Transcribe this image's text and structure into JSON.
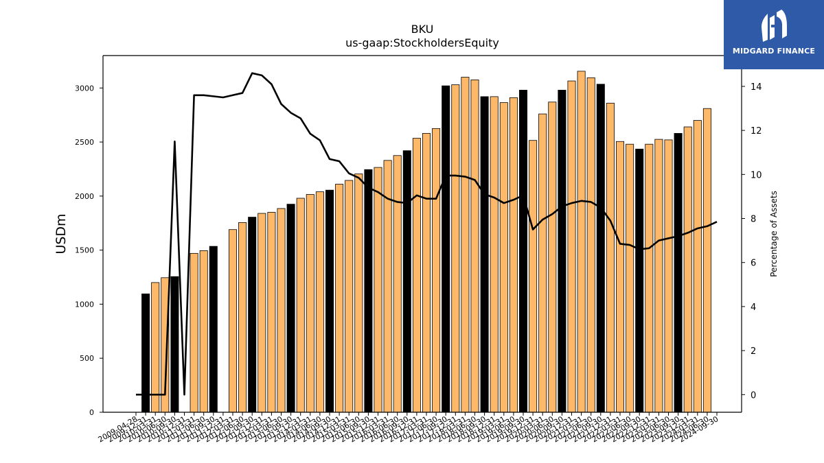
{
  "header": {
    "title": "BKU",
    "subtitle": "us-gaap:StockholdersEquity"
  },
  "logo": {
    "text": "MIDGARD FINANCE",
    "background": "#2f5aa8"
  },
  "chart_data": {
    "type": "bar",
    "title": "BKU",
    "subtitle": "us-gaap:StockholdersEquity",
    "xlabel": "",
    "ylabel": "USDm",
    "y2label": "Percentage of Assets",
    "ylim": [
      0,
      3300
    ],
    "y2lim": [
      -0.8,
      15.4
    ],
    "yticks": [
      0,
      500,
      1000,
      1500,
      2000,
      2500,
      3000
    ],
    "y2ticks": [
      0,
      2,
      4,
      6,
      8,
      10,
      12,
      14
    ],
    "legend": "none",
    "grid": false,
    "colors": {
      "quarterly_bar": "#fdb86a",
      "annual_bar": "#000000",
      "line": "#000000",
      "edge": "#000000"
    },
    "categories": [
      "2009-04-28",
      "2009-12-31",
      "2010-03-31",
      "2010-06-30",
      "2010-09-30",
      "2010-12-31",
      "2011-03-31",
      "2011-06-30",
      "2011-09-30",
      "2011-12-31",
      "2012-03-31",
      "2012-06-30",
      "2012-09-30",
      "2012-12-31",
      "2013-03-31",
      "2013-06-30",
      "2013-09-30",
      "2013-12-31",
      "2014-03-31",
      "2014-06-30",
      "2014-09-30",
      "2014-12-31",
      "2015-03-31",
      "2015-06-30",
      "2015-09-30",
      "2015-12-31",
      "2016-03-31",
      "2016-06-30",
      "2016-09-30",
      "2016-12-31",
      "2017-03-31",
      "2017-06-30",
      "2017-09-30",
      "2017-12-31",
      "2018-03-31",
      "2018-06-30",
      "2018-09-30",
      "2018-12-31",
      "2019-03-31",
      "2019-06-30",
      "2019-09-30",
      "2019-12-31",
      "2020-03-31",
      "2020-06-30",
      "2020-09-30",
      "2020-12-31",
      "2021-03-31",
      "2021-06-30",
      "2021-09-30",
      "2021-12-31",
      "2022-03-31",
      "2022-06-30",
      "2022-09-30",
      "2022-12-31",
      "2023-03-31",
      "2023-06-30",
      "2023-09-30",
      "2023-12-31",
      "2024-03-31",
      "2024-06-30",
      "2024-09-30"
    ],
    "bar_values": [
      null,
      1095,
      1200,
      1245,
      1255,
      null,
      1470,
      1495,
      1535,
      null,
      1690,
      1755,
      1805,
      1840,
      1850,
      1885,
      1925,
      1980,
      2015,
      2040,
      2055,
      2110,
      2145,
      2205,
      2245,
      2265,
      2330,
      2375,
      2420,
      2535,
      2580,
      2625,
      3020,
      3030,
      3100,
      3075,
      2920,
      2920,
      2865,
      2910,
      2980,
      2515,
      2760,
      2870,
      2980,
      3065,
      3155,
      3095,
      3035,
      2860,
      2505,
      2480,
      2435,
      2480,
      2525,
      2520,
      2580,
      2640,
      2700,
      2810,
      null
    ],
    "annual_flags": [
      false,
      true,
      false,
      false,
      true,
      false,
      false,
      false,
      true,
      false,
      false,
      false,
      true,
      false,
      false,
      false,
      true,
      false,
      false,
      false,
      true,
      false,
      false,
      false,
      true,
      false,
      false,
      false,
      true,
      false,
      false,
      false,
      true,
      false,
      false,
      false,
      true,
      false,
      false,
      false,
      true,
      false,
      false,
      false,
      true,
      false,
      false,
      false,
      true,
      false,
      false,
      false,
      true,
      false,
      false,
      false,
      true,
      false,
      false,
      false,
      false
    ],
    "line_series": {
      "values": [
        0.0,
        0.0,
        0.0,
        0.0,
        11.5,
        0.0,
        13.6,
        13.6,
        13.55,
        13.5,
        13.6,
        13.7,
        14.6,
        14.5,
        14.1,
        13.2,
        12.8,
        12.55,
        11.85,
        11.55,
        10.7,
        10.6,
        10.05,
        9.85,
        9.4,
        9.2,
        8.9,
        8.75,
        8.7,
        9.05,
        8.9,
        8.9,
        9.95,
        9.95,
        9.9,
        9.75,
        9.1,
        8.95,
        8.7,
        8.85,
        9.05,
        7.5,
        7.95,
        8.2,
        8.55,
        8.7,
        8.8,
        8.75,
        8.5,
        7.9,
        6.85,
        6.8,
        6.6,
        6.65,
        7.0,
        7.1,
        7.2,
        7.35,
        7.55,
        7.65,
        7.85
      ]
    }
  }
}
